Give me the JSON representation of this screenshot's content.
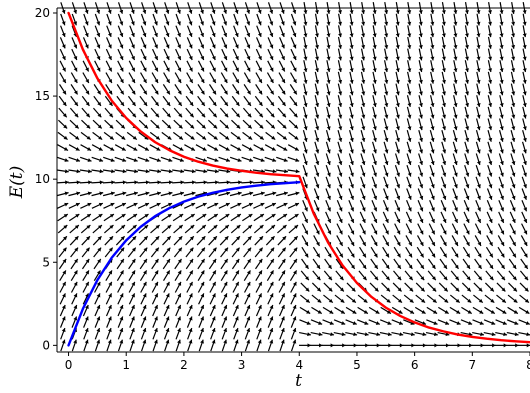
{
  "chart_data": {
    "type": "line",
    "subtype": "slope-field-with-solution-curves",
    "xlabel": "t",
    "ylabel": "E(t)",
    "xlim": [
      -0.2,
      8
    ],
    "ylim": [
      -0.4,
      20.3
    ],
    "x_ticks": [
      0,
      1,
      2,
      3,
      4,
      5,
      6,
      7,
      8
    ],
    "y_ticks": [
      0,
      5,
      10,
      15,
      20
    ],
    "grid": false,
    "legend": "none",
    "slope_field": {
      "color": "#000000",
      "piecewise": [
        {
          "t_from": 0,
          "t_to": 4,
          "equation": "dE/dt = 10 - E"
        },
        {
          "t_from": 4,
          "t_to": 8,
          "equation": "dE/dt = -E"
        }
      ],
      "t_samples": [
        -0.1,
        0.1,
        0.3,
        0.5,
        0.7,
        0.9,
        1.1,
        1.3,
        1.5,
        1.7,
        1.9,
        2.1,
        2.3,
        2.5,
        2.7,
        2.9,
        3.1,
        3.3,
        3.5,
        3.7,
        3.9,
        4.1,
        4.3,
        4.5,
        4.7,
        4.9,
        5.1,
        5.3,
        5.5,
        5.7,
        5.9,
        6.1,
        6.3,
        6.5,
        6.7,
        6.9,
        7.1,
        7.3,
        7.5,
        7.7,
        7.9
      ],
      "E_samples": [
        0,
        0.7,
        1.4,
        2.1,
        2.8,
        3.5,
        4.2,
        4.9,
        5.6,
        6.3,
        7.0,
        7.7,
        8.4,
        9.1,
        9.8,
        10.5,
        11.2,
        11.9,
        12.6,
        13.3,
        14.0,
        14.7,
        15.4,
        16.1,
        16.8,
        17.5,
        18.2,
        18.9,
        19.6,
        20.3
      ]
    },
    "series": [
      {
        "color": "#ff0000",
        "x": [
          0,
          0.25,
          0.5,
          0.75,
          1,
          1.25,
          1.5,
          1.75,
          2,
          2.25,
          2.5,
          2.75,
          3,
          3.25,
          3.5,
          3.75,
          4,
          4.25,
          4.5,
          4.75,
          5,
          5.25,
          5.5,
          5.75,
          6,
          6.25,
          6.5,
          6.75,
          7,
          7.25,
          7.5,
          7.75,
          8
        ],
        "values": [
          20,
          17.79,
          16.07,
          14.72,
          13.68,
          12.87,
          12.23,
          11.74,
          11.35,
          11.05,
          10.82,
          10.64,
          10.5,
          10.39,
          10.3,
          10.24,
          10.18,
          7.93,
          6.18,
          4.81,
          3.75,
          2.92,
          2.27,
          1.77,
          1.38,
          1.07,
          0.84,
          0.65,
          0.51,
          0.4,
          0.31,
          0.24,
          0.19
        ]
      },
      {
        "color": "#0000ff",
        "x": [
          0,
          0.25,
          0.5,
          0.75,
          1,
          1.25,
          1.5,
          1.75,
          2,
          2.25,
          2.5,
          2.75,
          3,
          3.25,
          3.5,
          3.75,
          4
        ],
        "values": [
          0,
          2.21,
          3.93,
          5.28,
          6.32,
          7.13,
          7.77,
          8.26,
          8.65,
          8.95,
          9.18,
          9.36,
          9.5,
          9.61,
          9.7,
          9.76,
          9.82
        ]
      }
    ]
  }
}
